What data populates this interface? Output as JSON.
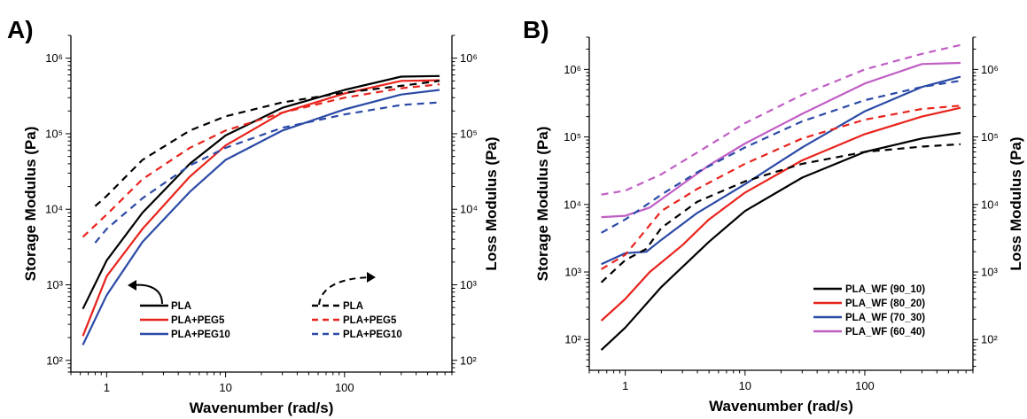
{
  "chart_data": [
    {
      "type": "line",
      "panel_label": "A)",
      "xlabel": "Wavenumber (rad/s)",
      "ylabel_left": "Storage Modulus (Pa)",
      "ylabel_right": "Loss Modulus (Pa)",
      "x_scale": "log",
      "y_scale": "log",
      "xlim": [
        0.5,
        800
      ],
      "ylim_left": [
        70,
        2000000
      ],
      "ylim_right": [
        70,
        2000000
      ],
      "x_ticks": [
        1,
        10,
        100
      ],
      "x_tick_labels": [
        "1",
        "10",
        "100"
      ],
      "y_ticks_left": [
        100,
        1000,
        10000,
        100000,
        1000000
      ],
      "y_tick_labels_left": [
        "10²",
        "10³",
        "10⁴",
        "10⁵",
        "10⁶"
      ],
      "y_ticks_right": [
        100,
        1000,
        10000,
        100000,
        1000000
      ],
      "y_tick_labels_right": [
        "10²",
        "10³",
        "10⁴",
        "10⁵",
        "10⁶"
      ],
      "grid": false,
      "legend_storage": [
        "PLA",
        "PLA+PEG5",
        "PLA+PEG10"
      ],
      "legend_loss": [
        "PLA",
        "PLA+PEG5",
        "PLA+PEG10"
      ],
      "legend_position": "bottom-center",
      "colors": {
        "PLA": "#000000",
        "PLA+PEG5": "#e8231c",
        "PLA+PEG10": "#2b4aa6"
      },
      "series": [
        {
          "name": "PLA",
          "modulus": "storage",
          "style": "solid",
          "color": "#000000",
          "x": [
            0.63,
            1,
            2,
            5,
            10,
            30,
            100,
            300,
            630
          ],
          "y": [
            480,
            2100,
            9000,
            40000,
            95000,
            220000,
            380000,
            570000,
            580000
          ]
        },
        {
          "name": "PLA+PEG5",
          "modulus": "storage",
          "style": "solid",
          "color": "#e8231c",
          "x": [
            0.63,
            1,
            2,
            5,
            10,
            30,
            100,
            300,
            630
          ],
          "y": [
            210,
            1300,
            5500,
            27000,
            70000,
            190000,
            340000,
            500000,
            510000
          ]
        },
        {
          "name": "PLA+PEG10",
          "modulus": "storage",
          "style": "solid",
          "color": "#2b4aa6",
          "x": [
            0.63,
            1,
            2,
            5,
            10,
            30,
            100,
            300,
            630
          ],
          "y": [
            160,
            730,
            3700,
            17000,
            45000,
            110000,
            210000,
            330000,
            380000
          ]
        },
        {
          "name": "PLA",
          "modulus": "loss",
          "style": "dashed",
          "color": "#000000",
          "x": [
            0.8,
            1,
            2,
            5,
            10,
            30,
            100,
            300,
            630
          ],
          "y": [
            11000,
            15000,
            45000,
            110000,
            170000,
            260000,
            350000,
            430000,
            500000
          ]
        },
        {
          "name": "PLA+PEG5",
          "modulus": "loss",
          "style": "dashed",
          "color": "#e8231c",
          "x": [
            0.63,
            1,
            2,
            5,
            10,
            30,
            100,
            300,
            630
          ],
          "y": [
            4300,
            8500,
            25000,
            65000,
            110000,
            190000,
            300000,
            400000,
            450000
          ]
        },
        {
          "name": "PLA+PEG10",
          "modulus": "loss",
          "style": "dashed",
          "color": "#2b4aa6",
          "x": [
            0.8,
            1,
            2,
            5,
            10,
            30,
            100,
            300,
            630
          ],
          "y": [
            3600,
            5500,
            14000,
            38000,
            65000,
            120000,
            180000,
            240000,
            260000
          ]
        }
      ]
    },
    {
      "type": "line",
      "panel_label": "B)",
      "xlabel": "Wavenumber (rad/s)",
      "ylabel_left": "Storage Modulus (Pa)",
      "ylabel_right": "Loss Modulus (Pa)",
      "x_scale": "log",
      "y_scale": "log",
      "xlim": [
        0.5,
        800
      ],
      "ylim_left": [
        35,
        3000000
      ],
      "ylim_right": [
        35,
        3000000
      ],
      "x_ticks": [
        1,
        10,
        100
      ],
      "x_tick_labels": [
        "1",
        "10",
        "100"
      ],
      "y_ticks_left": [
        100,
        1000,
        10000,
        100000,
        1000000
      ],
      "y_tick_labels_left": [
        "10²",
        "10³",
        "10⁴",
        "10⁵",
        "10⁶"
      ],
      "y_ticks_right": [
        100,
        1000,
        10000,
        100000,
        1000000
      ],
      "y_tick_labels_right": [
        "10²",
        "10³",
        "10⁴",
        "10⁵",
        "10⁶"
      ],
      "grid": false,
      "legend": [
        "PLA_WF (90_10)",
        "PLA_WF (80_20)",
        "PLA_WF (70_30)",
        "PLA_WF (60_40)"
      ],
      "legend_position": "bottom-right",
      "colors": {
        "PLA_WF (90_10)": "#000000",
        "PLA_WF (80_20)": "#e8231c",
        "PLA_WF (70_30)": "#2b4aa6",
        "PLA_WF (60_40)": "#c05ec4"
      },
      "series": [
        {
          "name": "PLA_WF (90_10)",
          "modulus": "storage",
          "style": "solid",
          "color": "#000000",
          "x": [
            0.63,
            1,
            2,
            5,
            10,
            30,
            100,
            300,
            630
          ],
          "y": [
            70,
            150,
            600,
            2800,
            8000,
            25000,
            60000,
            95000,
            115000
          ]
        },
        {
          "name": "PLA_WF (80_20)",
          "modulus": "storage",
          "style": "solid",
          "color": "#e8231c",
          "x": [
            0.63,
            1,
            1.6,
            3,
            5,
            10,
            30,
            100,
            300,
            630
          ],
          "y": [
            190,
            400,
            1000,
            2500,
            6000,
            15000,
            45000,
            110000,
            200000,
            270000
          ]
        },
        {
          "name": "PLA_WF (70_30)",
          "modulus": "storage",
          "style": "solid",
          "color": "#2b4aa6",
          "x": [
            0.63,
            1,
            1.5,
            2,
            4,
            10,
            30,
            100,
            300,
            630
          ],
          "y": [
            1300,
            1900,
            2000,
            3000,
            7500,
            20000,
            70000,
            240000,
            550000,
            780000
          ]
        },
        {
          "name": "PLA_WF (60_40)",
          "modulus": "storage",
          "style": "solid",
          "color": "#c05ec4",
          "x": [
            0.63,
            1,
            1.6,
            3,
            5,
            10,
            30,
            100,
            300,
            630
          ],
          "y": [
            6500,
            6800,
            9000,
            20000,
            38000,
            80000,
            220000,
            620000,
            1200000,
            1250000
          ]
        },
        {
          "name": "PLA_WF (90_10)",
          "modulus": "loss",
          "style": "dashed",
          "color": "#000000",
          "x": [
            0.63,
            1,
            1.5,
            2,
            4,
            10,
            30,
            100,
            300,
            630
          ],
          "y": [
            700,
            1500,
            2200,
            4500,
            11000,
            22000,
            40000,
            60000,
            72000,
            78000
          ]
        },
        {
          "name": "PLA_WF (80_20)",
          "modulus": "loss",
          "style": "dashed",
          "color": "#e8231c",
          "x": [
            0.63,
            1,
            2,
            4,
            10,
            30,
            100,
            300,
            630
          ],
          "y": [
            1100,
            1800,
            8000,
            17000,
            40000,
            95000,
            180000,
            260000,
            290000
          ]
        },
        {
          "name": "PLA_WF (70_30)",
          "modulus": "loss",
          "style": "dashed",
          "color": "#2b4aa6",
          "x": [
            0.63,
            1,
            2,
            4,
            10,
            30,
            100,
            300,
            630
          ],
          "y": [
            3800,
            6000,
            14000,
            30000,
            70000,
            170000,
            350000,
            550000,
            680000
          ]
        },
        {
          "name": "PLA_WF (60_40)",
          "modulus": "loss",
          "style": "dashed",
          "color": "#c05ec4",
          "x": [
            0.63,
            1,
            2,
            5,
            10,
            30,
            100,
            300,
            630
          ],
          "y": [
            14000,
            16000,
            28000,
            75000,
            160000,
            420000,
            1000000,
            1700000,
            2300000
          ]
        }
      ]
    }
  ]
}
